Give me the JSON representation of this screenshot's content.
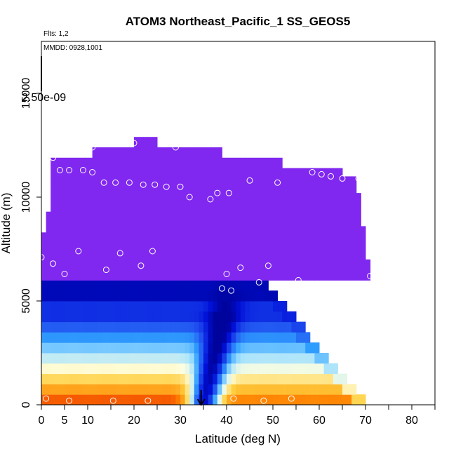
{
  "chart_data": {
    "type": "heatmap",
    "title": "ATOM3 Northeast_Pacific_1 SS_GEOS5",
    "flights_note": "Flts: 1,2",
    "dates_note": "MMDD: 0928,1001",
    "scale_label": "2.50e-09",
    "xlabel": "Latitude (deg N)",
    "ylabel": "Altitude (m)",
    "xlim": [
      0,
      85
    ],
    "ylim": [
      0,
      17500
    ],
    "x_ticks": [
      0,
      5,
      10,
      20,
      30,
      40,
      50,
      60,
      70,
      80
    ],
    "x_tick_labels": [
      "0",
      "5",
      "10",
      "20",
      "30",
      "40",
      "50",
      "60",
      "70",
      "80"
    ],
    "x_minor_ticks": [
      15,
      25,
      35,
      45,
      55,
      65,
      75,
      85
    ],
    "y_ticks": [
      0,
      5000,
      10000,
      15000
    ],
    "y_tick_labels": [
      "0",
      "5000",
      "10000",
      "15000"
    ],
    "colors": {
      "upper": "#8028f0",
      "scale": [
        "#000090",
        "#0010d8",
        "#2050f0",
        "#30a0ff",
        "#a0e0ff",
        "#ffffe0",
        "#ffd040",
        "#ff8000",
        "#e00000"
      ]
    },
    "arrow_latitude": 34.5,
    "flight_points": [
      {
        "lat": 0,
        "alt": 7100
      },
      {
        "lat": 1,
        "alt": 300
      },
      {
        "lat": 2.5,
        "alt": 6800
      },
      {
        "lat": 2.5,
        "alt": 11900
      },
      {
        "lat": 4,
        "alt": 11300
      },
      {
        "lat": 5,
        "alt": 6300
      },
      {
        "lat": 6,
        "alt": 11300
      },
      {
        "lat": 6,
        "alt": 200
      },
      {
        "lat": 8,
        "alt": 7400
      },
      {
        "lat": 9,
        "alt": 11300
      },
      {
        "lat": 11,
        "alt": 12400
      },
      {
        "lat": 11,
        "alt": 11200
      },
      {
        "lat": 13.5,
        "alt": 10700
      },
      {
        "lat": 14,
        "alt": 6500
      },
      {
        "lat": 15.5,
        "alt": 200
      },
      {
        "lat": 16,
        "alt": 10700
      },
      {
        "lat": 17,
        "alt": 7300
      },
      {
        "lat": 19,
        "alt": 10700
      },
      {
        "lat": 20,
        "alt": 12600
      },
      {
        "lat": 21.5,
        "alt": 6700
      },
      {
        "lat": 22,
        "alt": 10600
      },
      {
        "lat": 23,
        "alt": 200
      },
      {
        "lat": 24,
        "alt": 7400
      },
      {
        "lat": 24.5,
        "alt": 10600
      },
      {
        "lat": 26.5,
        "alt": 12800
      },
      {
        "lat": 27,
        "alt": 10500
      },
      {
        "lat": 29,
        "alt": 12400
      },
      {
        "lat": 30,
        "alt": 10500
      },
      {
        "lat": 32,
        "alt": 10000
      },
      {
        "lat": 36.5,
        "alt": 9900
      },
      {
        "lat": 38,
        "alt": 10200
      },
      {
        "lat": 39,
        "alt": 5600
      },
      {
        "lat": 40,
        "alt": 6300
      },
      {
        "lat": 40.5,
        "alt": 10200
      },
      {
        "lat": 41,
        "alt": 5500
      },
      {
        "lat": 41.5,
        "alt": 300
      },
      {
        "lat": 43,
        "alt": 6600
      },
      {
        "lat": 45,
        "alt": 10800
      },
      {
        "lat": 47,
        "alt": 5900
      },
      {
        "lat": 48,
        "alt": 200
      },
      {
        "lat": 49,
        "alt": 6700
      },
      {
        "lat": 51,
        "alt": 10700
      },
      {
        "lat": 52.5,
        "alt": 5300
      },
      {
        "lat": 54,
        "alt": 300
      },
      {
        "lat": 55.5,
        "alt": 6000
      },
      {
        "lat": 58.5,
        "alt": 11200
      },
      {
        "lat": 60.5,
        "alt": 11100
      },
      {
        "lat": 62.5,
        "alt": 11000
      },
      {
        "lat": 65,
        "alt": 10900
      },
      {
        "lat": 68.5,
        "alt": 10900
      },
      {
        "lat": 71,
        "alt": 6200
      }
    ]
  }
}
